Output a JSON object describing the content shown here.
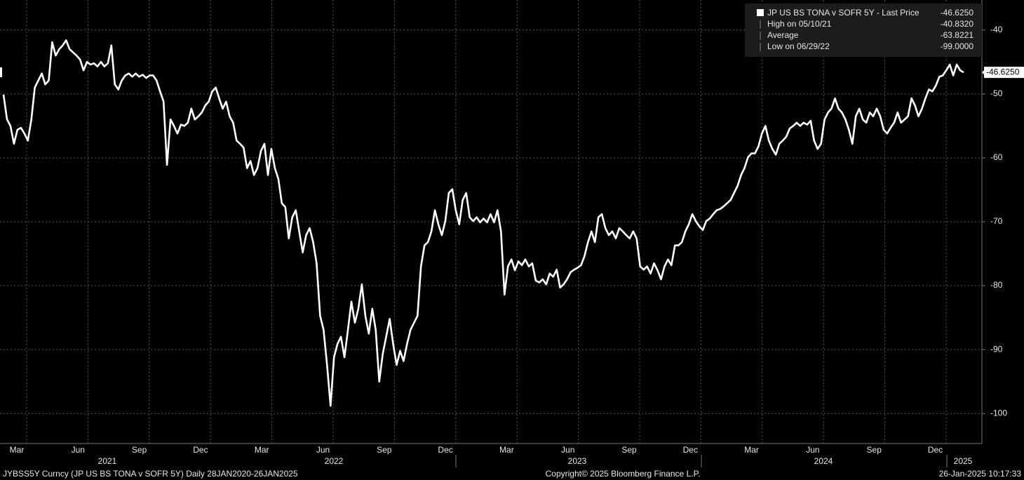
{
  "chart_data": {
    "type": "line",
    "series": [
      {
        "name": "JP US BS TONA v SOFR 5Y - Last Price",
        "color": "#ffffff",
        "values": [
          -50.1,
          -54,
          -55,
          -57.8,
          -55.6,
          -55.3,
          -56.2,
          -57.3,
          -54,
          -49,
          -47.9,
          -46.8,
          -48.5,
          -47.9,
          -41.9,
          -44,
          -43,
          -42.4,
          -41.6,
          -43,
          -43.5,
          -44,
          -44.6,
          -46.3,
          -45,
          -45.4,
          -45.2,
          -45.7,
          -45,
          -45.7,
          -45.2,
          -42.4,
          -48.5,
          -49.3,
          -47.9,
          -47.1,
          -46.8,
          -47.3,
          -46.8,
          -47.3,
          -47,
          -47.5,
          -47.1,
          -47.1,
          -47.9,
          -49.6,
          -51.2,
          -61.1,
          -54,
          -55,
          -56.2,
          -54.8,
          -55,
          -54.5,
          -52.3,
          -54,
          -53.5,
          -52.9,
          -51.8,
          -51.2,
          -49.6,
          -49,
          -50.7,
          -52.3,
          -51.2,
          -53.5,
          -54.5,
          -57.3,
          -57.8,
          -58.4,
          -61.6,
          -60.5,
          -62.7,
          -61.6,
          -58.9,
          -57.8,
          -62.7,
          -58.6,
          -61.6,
          -63.3,
          -67.1,
          -67.7,
          -72.6,
          -69.3,
          -68.2,
          -71.5,
          -74.8,
          -72.1,
          -71,
          -73.2,
          -76.5,
          -84.7,
          -86.9,
          -92.4,
          -98.8,
          -91.2,
          -89.1,
          -88,
          -91.2,
          -86.9,
          -82.5,
          -85.8,
          -83.6,
          -79.8,
          -84.7,
          -87.5,
          -83.6,
          -86.9,
          -95,
          -90.7,
          -88,
          -85.2,
          -89.1,
          -92.4,
          -90.2,
          -91.8,
          -89.1,
          -86.9,
          -85.8,
          -84.7,
          -77,
          -73.7,
          -73.2,
          -71.5,
          -68.2,
          -70.4,
          -72.1,
          -69.9,
          -65.5,
          -64.9,
          -68.2,
          -70.4,
          -66.6,
          -65.5,
          -69.3,
          -69.9,
          -69.3,
          -70.1,
          -69.5,
          -70.1,
          -68.8,
          -70.1,
          -68.2,
          -71.5,
          -81.4,
          -77,
          -75.9,
          -77.6,
          -76.2,
          -76.8,
          -75.9,
          -77,
          -76.5,
          -79.2,
          -79.5,
          -79,
          -79.8,
          -78.1,
          -78.6,
          -77.5,
          -80.3,
          -79.8,
          -79,
          -77.9,
          -77.5,
          -77.2,
          -76.8,
          -75.4,
          -73.2,
          -71.5,
          -73.2,
          -69.3,
          -68.8,
          -71,
          -72.1,
          -71.5,
          -72.6,
          -71,
          -71.5,
          -72.1,
          -72.6,
          -71.5,
          -72.6,
          -77,
          -77.5,
          -77,
          -78.1,
          -76.5,
          -77.6,
          -79,
          -77,
          -75.9,
          -76.8,
          -73.7,
          -73.7,
          -73.2,
          -71.5,
          -70.4,
          -68.8,
          -69.9,
          -70.7,
          -71.3,
          -69.9,
          -69.5,
          -68.8,
          -68.2,
          -68,
          -67.6,
          -67.1,
          -66.6,
          -65.5,
          -64.4,
          -62.7,
          -61.6,
          -59.9,
          -59.3,
          -59.3,
          -58.2,
          -56.2,
          -55,
          -57.3,
          -58.6,
          -59.5,
          -57.8,
          -57.3,
          -56.7,
          -55.4,
          -55,
          -54.5,
          -55,
          -54.5,
          -54.8,
          -54.2,
          -57.3,
          -58.6,
          -57.8,
          -54,
          -52.9,
          -52.3,
          -50.7,
          -52.3,
          -52.9,
          -54,
          -55.6,
          -57.8,
          -53.5,
          -52.3,
          -54,
          -54.5,
          -52.9,
          -53.5,
          -52.3,
          -53.5,
          -55.6,
          -56.2,
          -55.3,
          -54.5,
          -52.9,
          -54.5,
          -54,
          -53.5,
          -50.7,
          -51.8,
          -53.5,
          -52.3,
          -50.7,
          -49.3,
          -49.6,
          -48.7,
          -47.3,
          -47.1,
          -46.3,
          -45.4,
          -47.1,
          -45.4,
          -46.3,
          -46.625
        ]
      }
    ],
    "month_labels": [
      "Mar",
      "Jun",
      "Sep",
      "Dec",
      "Mar",
      "Jun",
      "Sep",
      "Dec",
      "Mar",
      "Jun",
      "Sep",
      "Dec",
      "Mar",
      "Jun",
      "Sep",
      "Dec"
    ],
    "year_labels": [
      "2021",
      "2022",
      "2023",
      "2024",
      "2025"
    ],
    "ylim": [
      -104.7,
      -35.3
    ],
    "yticks": [
      -40,
      -50,
      -60,
      -70,
      -80,
      -90,
      -100
    ],
    "grid": true,
    "legend": {
      "last": {
        "label": "JP US BS TONA v SOFR 5Y - Last Price",
        "value": -46.625,
        "value_label": "-46.6250"
      },
      "stats": [
        {
          "label": "High on 05/10/21",
          "value": -40.832,
          "value_label": "-40.8320"
        },
        {
          "label": "Average",
          "value": -63.8221,
          "value_label": "-63.8221"
        },
        {
          "label": "Low on 06/29/22",
          "value": -99,
          "value_label": "-99.0000"
        }
      ]
    },
    "footer": {
      "left": "JYBSS5Y Curncy (JP US BS TONA v SOFR 5Y)  Daily 28JAN2020-26JAN2025",
      "center": "Copyright© 2025 Bloomberg Finance L.P.",
      "right": "26-Jan-2025 10:17:33"
    }
  }
}
